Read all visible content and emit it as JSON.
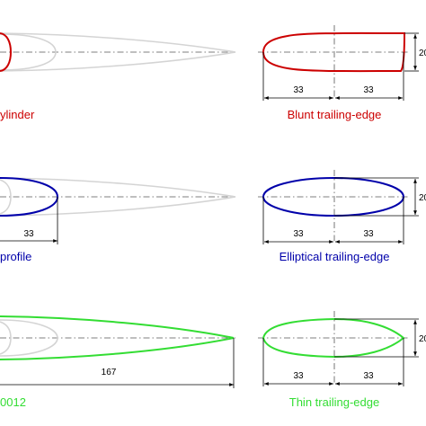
{
  "panels": {
    "cylinder": {
      "label": "ylinder",
      "color": "#cc0000"
    },
    "microprofile": {
      "label": "profile",
      "color": "#0000aa",
      "dim_length": "33"
    },
    "naca": {
      "label": "0012",
      "color": "#33dd33",
      "dim_length": "167"
    },
    "blunt": {
      "label": "Blunt trailing-edge",
      "color": "#cc0000",
      "dim_front": "33",
      "dim_rear": "33",
      "dim_height": "20"
    },
    "elliptical": {
      "label": "Elliptical trailing-edge",
      "color": "#0000aa",
      "dim_front": "33",
      "dim_rear": "33",
      "dim_height": "20"
    },
    "thin": {
      "label": "Thin trailing-edge",
      "color": "#33dd33",
      "dim_front": "33",
      "dim_rear": "33",
      "dim_height": "20"
    }
  }
}
